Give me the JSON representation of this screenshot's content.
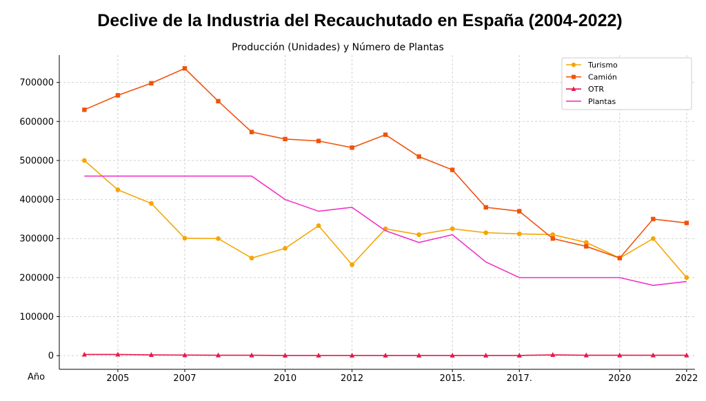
{
  "chart_data": {
    "type": "line",
    "title": "Declive de la Industria del Recauchutado en España (2004-2022)",
    "subtitle": "Producción (Unidades) y Número de Plantas",
    "xlabel": "Año",
    "ylabel": "",
    "x_tick_labels": [
      "2005",
      "2007",
      "2010",
      "2012",
      "2015.",
      "2017.",
      "2020",
      "2022"
    ],
    "x_tick_values": [
      2005,
      2007,
      2010,
      2012,
      2015,
      2017,
      2020,
      2022
    ],
    "y_tick_labels": [
      "0",
      "100000",
      "200000",
      "300000",
      "400000",
      "500000",
      "600000",
      "700000"
    ],
    "y_tick_values": [
      0,
      100000,
      200000,
      300000,
      400000,
      500000,
      600000,
      700000
    ],
    "xlim": [
      2003.25,
      2022.25
    ],
    "ylim": [
      -35000,
      770000
    ],
    "grid": true,
    "legend_position": "top-right",
    "x": [
      2004,
      2005,
      2006,
      2007,
      2008,
      2009,
      2010,
      2011,
      2012,
      2013,
      2014,
      2015,
      2016,
      2017,
      2018,
      2019,
      2020,
      2021,
      2022
    ],
    "series": [
      {
        "name": "Turismo",
        "color": "#f5a500",
        "marker": "circle",
        "values": [
          500000,
          425000,
          390000,
          301000,
          300000,
          250000,
          275000,
          333000,
          233000,
          325000,
          310000,
          325000,
          315000,
          312000,
          310000,
          290000,
          250000,
          300000,
          200000
        ]
      },
      {
        "name": "Camión",
        "color": "#f0520c",
        "marker": "square",
        "values": [
          630000,
          667000,
          698000,
          736000,
          652000,
          573000,
          555000,
          550000,
          533000,
          566000,
          510000,
          476000,
          380000,
          370000,
          300000,
          280000,
          250000,
          350000,
          340000
        ]
      },
      {
        "name": "OTR",
        "color": "#e8184a",
        "marker": "triangle",
        "values": [
          3000,
          3000,
          2000,
          1500,
          1000,
          1000,
          500,
          500,
          500,
          500,
          500,
          500,
          500,
          500,
          2000,
          1000,
          1000,
          1000,
          1000
        ]
      },
      {
        "name": "Plantas",
        "color": "#f032c8",
        "marker": "none",
        "values": [
          460000,
          460000,
          460000,
          460000,
          460000,
          460000,
          400000,
          370000,
          380000,
          320000,
          290000,
          310000,
          240000,
          200000,
          200000,
          200000,
          200000,
          180000,
          190000
        ]
      }
    ]
  }
}
